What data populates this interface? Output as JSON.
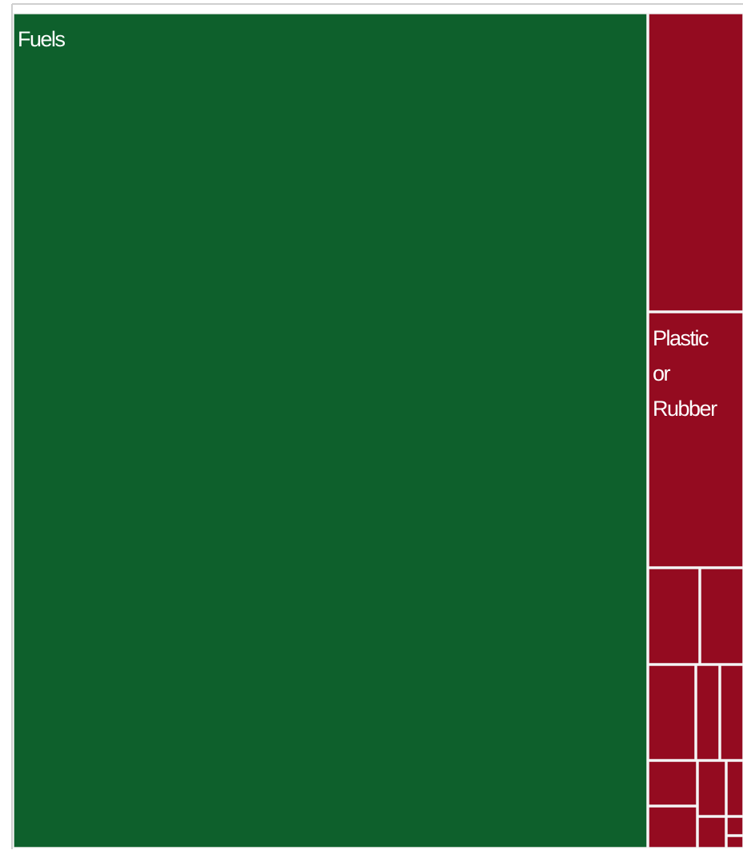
{
  "chart_data": {
    "type": "treemap",
    "colors": {
      "positive": "#0e602c",
      "negative": "#940b20",
      "border": "#f2f2f2",
      "frame": "#cfcfcf"
    },
    "label_color": "#ffffff",
    "cells": [
      {
        "label": "Fuels",
        "lines": [
          "Fuels"
        ],
        "group": "positive"
      },
      {
        "label": "",
        "lines": [],
        "group": "negative"
      },
      {
        "label": "Plastic or Rubber",
        "lines": [
          "Plastic",
          "or",
          "Rubber"
        ],
        "group": "negative"
      },
      {
        "label": "",
        "lines": [],
        "group": "negative"
      },
      {
        "label": "",
        "lines": [],
        "group": "negative"
      },
      {
        "label": "",
        "lines": [],
        "group": "negative"
      },
      {
        "label": "",
        "lines": [],
        "group": "negative"
      },
      {
        "label": "",
        "lines": [],
        "group": "negative"
      },
      {
        "label": "",
        "lines": [],
        "group": "negative"
      },
      {
        "label": "",
        "lines": [],
        "group": "negative"
      },
      {
        "label": "",
        "lines": [],
        "group": "negative"
      },
      {
        "label": "",
        "lines": [],
        "group": "negative"
      },
      {
        "label": "",
        "lines": [],
        "group": "negative"
      },
      {
        "label": "",
        "lines": [],
        "group": "negative"
      },
      {
        "label": "",
        "lines": [],
        "group": "negative"
      }
    ]
  }
}
